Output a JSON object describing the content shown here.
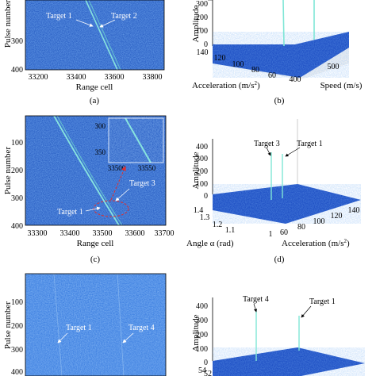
{
  "panel_a": {
    "caption": "(a)",
    "ylabel": "Pulse number",
    "xlabel": "Range cell",
    "yticks": [
      "300",
      "400"
    ],
    "xticks": [
      "33200",
      "33400",
      "33600",
      "33800"
    ],
    "annotations": [
      "Target 1",
      "Target 2"
    ]
  },
  "panel_b": {
    "caption": "(b)",
    "zlabel": "Amplitude",
    "zticks": [
      "300",
      "200",
      "100",
      "0"
    ],
    "accel_label": "Acceleration (m/s",
    "accel_sup": "2",
    "accel_close": ")",
    "speed_label": "Speed (m/s)",
    "accel_ticks": [
      "140",
      "120",
      "100",
      "80",
      "60"
    ],
    "speed_ticks": [
      "400",
      "500"
    ]
  },
  "panel_c": {
    "caption": "(c)",
    "ylabel": "Pulse number",
    "xlabel": "Range cell",
    "yticks": [
      "100",
      "200",
      "300",
      "400"
    ],
    "xticks": [
      "33300",
      "33400",
      "33500",
      "33600",
      "33700"
    ],
    "annotations": [
      "Target 1",
      "Target 3"
    ],
    "inset_yticks": [
      "300",
      "350"
    ],
    "inset_xticks": [
      "33500",
      "33550"
    ]
  },
  "panel_d": {
    "caption": "(d)",
    "zlabel": "Amplitude",
    "zticks": [
      "400",
      "300",
      "200",
      "100",
      "0"
    ],
    "angle_label": "Angle α (rad)",
    "accel_label": "Acceleration (m/s",
    "accel_sup": "2",
    "accel_close": ")",
    "angle_ticks": [
      "1.4",
      "1.3",
      "1.2",
      "1.1",
      "1"
    ],
    "accel_ticks": [
      "60",
      "80",
      "100",
      "120",
      "140"
    ],
    "annotations": [
      "Target 3",
      "Target 1"
    ]
  },
  "panel_e": {
    "ylabel": "Pulse number",
    "yticks": [
      "100",
      "200",
      "300",
      "400"
    ],
    "annotations": [
      "Target 1",
      "Target 4"
    ]
  },
  "panel_f": {
    "zlabel": "Amplitude",
    "zticks": [
      "400",
      "300",
      "200",
      "100",
      "0"
    ],
    "bottom_ticks": [
      "54",
      "52"
    ],
    "annotations": [
      "Target 4",
      "Target 1"
    ]
  },
  "colors": {
    "noise_dark": "#1f3f9e",
    "noise_mid": "#2f6fd0",
    "noise_light": "#4a9ae6",
    "track": "#7fe6d6",
    "surface": "#1e4fc4"
  }
}
